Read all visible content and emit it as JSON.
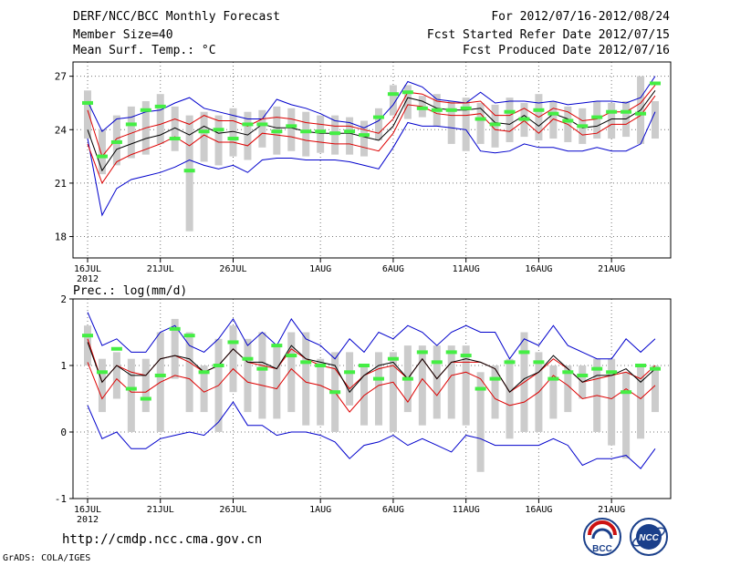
{
  "header": {
    "left": [
      "DERF/NCC/BCC Monthly Forecast",
      "Member Size=40",
      "Mean Surf. Temp.: °C"
    ],
    "right": [
      "For 2012/07/16-2012/08/24",
      "Fcst Started Refer Date 2012/07/15",
      "Fcst Produced Date 2012/07/16"
    ]
  },
  "footer": {
    "url": "http://cmdp.ncc.cma.gov.cn",
    "credit": "GrADS: COLA/IGES"
  },
  "logos": {
    "bcc": "BCC",
    "ncc": "NCC"
  },
  "colors": {
    "max_min": "#0000cc",
    "percentile": "#dd0000",
    "mean": "#000000",
    "observed": "#44ee44",
    "box": "#cccccc",
    "grid": "#777777"
  },
  "chart_data": [
    {
      "type": "line",
      "title": "Mean Surf. Temp.: °C",
      "x_tick_labels": [
        "16JUL",
        "21JUL",
        "26JUL",
        "1AUG",
        "6AUG",
        "11AUG",
        "16AUG",
        "21AUG"
      ],
      "x_tick_days": [
        1,
        6,
        11,
        17,
        22,
        27,
        32,
        37
      ],
      "year_label": "2012",
      "ylim": [
        16.8,
        27.8
      ],
      "y_ticks": [
        18,
        21,
        24,
        27
      ],
      "days": 40,
      "series": [
        {
          "name": "max",
          "color": "#0000cc",
          "values": [
            23.5,
            19.2,
            20.7,
            21.2,
            21.4,
            21.6,
            21.9,
            22.3,
            22.0,
            21.8,
            22.0,
            21.6,
            22.3,
            22.4,
            22.4,
            22.3,
            22.3,
            22.3,
            22.2,
            22.0,
            21.8,
            23.0,
            24.4,
            24.2,
            24.2,
            24.1,
            24.0,
            22.8,
            22.7,
            22.8,
            23.2,
            23.0,
            23.0,
            22.8,
            22.8,
            23.0,
            22.8,
            22.8,
            23.2,
            25.0
          ]
        },
        {
          "name": "min",
          "color": "#0000cc",
          "values": [
            25.6,
            23.9,
            24.6,
            24.7,
            25.0,
            25.1,
            25.5,
            25.8,
            25.2,
            25.0,
            24.8,
            24.6,
            24.6,
            25.7,
            25.4,
            25.2,
            24.9,
            24.5,
            24.4,
            24.1,
            24.5,
            25.4,
            26.7,
            26.4,
            25.7,
            25.6,
            25.5,
            26.1,
            25.5,
            25.6,
            25.6,
            25.5,
            25.6,
            25.4,
            25.5,
            25.6,
            25.6,
            25.5,
            25.8,
            27.0
          ]
        },
        {
          "name": "p90",
          "color": "#dd0000",
          "values": [
            25.1,
            22.5,
            23.5,
            23.8,
            24.1,
            24.3,
            24.6,
            24.3,
            24.8,
            24.5,
            24.5,
            24.2,
            24.6,
            24.7,
            24.6,
            24.4,
            24.3,
            24.2,
            24.2,
            24.0,
            23.8,
            24.6,
            26.1,
            26.0,
            25.6,
            25.5,
            25.5,
            25.6,
            24.8,
            24.8,
            25.2,
            24.7,
            25.2,
            25.0,
            24.5,
            24.6,
            25.0,
            25.0,
            25.5,
            26.5
          ]
        },
        {
          "name": "p10",
          "color": "#dd0000",
          "values": [
            23.2,
            21.0,
            22.2,
            22.6,
            22.9,
            23.2,
            23.6,
            23.1,
            23.7,
            23.3,
            23.3,
            23.1,
            23.8,
            23.7,
            23.6,
            23.4,
            23.3,
            23.2,
            23.2,
            23.0,
            22.8,
            23.8,
            25.4,
            25.3,
            24.9,
            24.8,
            24.8,
            24.9,
            24.0,
            23.9,
            24.5,
            23.8,
            24.6,
            24.3,
            23.7,
            23.8,
            24.3,
            24.3,
            24.8,
            25.9
          ]
        },
        {
          "name": "mean",
          "color": "#000000",
          "values": [
            24.0,
            21.7,
            22.9,
            23.2,
            23.5,
            23.7,
            24.1,
            23.7,
            24.2,
            23.8,
            23.9,
            23.7,
            24.3,
            24.1,
            24.1,
            23.9,
            23.8,
            23.8,
            23.8,
            23.6,
            23.4,
            24.2,
            25.8,
            25.6,
            25.2,
            25.1,
            25.1,
            25.2,
            24.4,
            24.3,
            24.8,
            24.2,
            24.9,
            24.6,
            24.1,
            24.2,
            24.6,
            24.6,
            25.1,
            26.2
          ]
        }
      ],
      "observed": [
        25.5,
        22.5,
        23.3,
        24.3,
        25.1,
        25.3,
        23.5,
        21.7,
        23.9,
        24.0,
        23.5,
        24.3,
        24.3,
        23.9,
        24.2,
        23.9,
        23.9,
        23.8,
        23.9,
        23.7,
        24.7,
        26.0,
        26.1,
        25.2,
        25.1,
        25.1,
        25.2,
        24.6,
        24.3,
        25.0,
        24.6,
        25.1,
        24.9,
        24.5,
        24.2,
        24.7,
        25.0,
        25.0,
        24.9,
        26.6
      ],
      "boxes": [
        [
          23.5,
          26.2
        ],
        [
          21.5,
          24.0
        ],
        [
          22.0,
          24.8
        ],
        [
          22.4,
          25.3
        ],
        [
          22.6,
          25.6
        ],
        [
          23.2,
          26.0
        ],
        [
          22.8,
          25.3
        ],
        [
          18.3,
          24.8
        ],
        [
          22.2,
          25.0
        ],
        [
          22.0,
          24.8
        ],
        [
          22.5,
          25.2
        ],
        [
          22.3,
          25.0
        ],
        [
          23.0,
          25.1
        ],
        [
          22.6,
          25.3
        ],
        [
          22.8,
          25.2
        ],
        [
          22.5,
          25.0
        ],
        [
          22.7,
          24.8
        ],
        [
          22.6,
          24.8
        ],
        [
          22.6,
          24.7
        ],
        [
          22.5,
          24.5
        ],
        [
          23.4,
          25.2
        ],
        [
          24.8,
          26.5
        ],
        [
          24.6,
          26.5
        ],
        [
          24.7,
          25.9
        ],
        [
          24.2,
          26.0
        ],
        [
          23.2,
          25.6
        ],
        [
          22.8,
          25.8
        ],
        [
          23.2,
          25.5
        ],
        [
          23.0,
          25.4
        ],
        [
          23.3,
          25.8
        ],
        [
          23.6,
          25.5
        ],
        [
          23.4,
          26.0
        ],
        [
          23.5,
          25.6
        ],
        [
          23.3,
          25.3
        ],
        [
          23.2,
          25.2
        ],
        [
          23.5,
          25.6
        ],
        [
          23.5,
          25.5
        ],
        [
          23.6,
          25.6
        ],
        [
          23.2,
          27.0
        ],
        [
          23.5,
          25.6
        ]
      ]
    },
    {
      "type": "line",
      "title": "Prec.: log(mm/d)",
      "x_tick_labels": [
        "16JUL",
        "21JUL",
        "26JUL",
        "1AUG",
        "6AUG",
        "11AUG",
        "16AUG",
        "21AUG"
      ],
      "x_tick_days": [
        1,
        6,
        11,
        17,
        22,
        27,
        32,
        37
      ],
      "year_label": "2012",
      "ylim": [
        -1,
        2
      ],
      "y_ticks": [
        -1,
        0,
        1,
        2
      ],
      "days": 40,
      "series": [
        {
          "name": "max",
          "color": "#0000cc",
          "values": [
            1.8,
            1.3,
            1.4,
            1.2,
            1.2,
            1.5,
            1.6,
            1.3,
            1.2,
            1.4,
            1.7,
            1.3,
            1.5,
            1.3,
            1.7,
            1.4,
            1.3,
            1.1,
            1.4,
            1.2,
            1.5,
            1.4,
            1.6,
            1.5,
            1.3,
            1.5,
            1.6,
            1.5,
            1.5,
            1.1,
            1.4,
            1.3,
            1.6,
            1.3,
            1.2,
            1.1,
            1.1,
            1.4,
            1.2,
            1.4
          ]
        },
        {
          "name": "min",
          "color": "#0000cc",
          "values": [
            0.4,
            -0.1,
            0.0,
            -0.25,
            -0.25,
            -0.1,
            -0.05,
            0.0,
            -0.05,
            0.15,
            0.45,
            0.1,
            0.1,
            -0.05,
            0.0,
            0.0,
            -0.05,
            -0.15,
            -0.4,
            -0.2,
            -0.15,
            -0.05,
            -0.2,
            -0.1,
            -0.2,
            -0.3,
            -0.05,
            -0.1,
            -0.2,
            -0.2,
            -0.2,
            -0.2,
            -0.1,
            -0.2,
            -0.5,
            -0.4,
            -0.4,
            -0.35,
            -0.55,
            -0.25
          ]
        },
        {
          "name": "p90",
          "color": "#dd0000",
          "values": [
            1.4,
            0.75,
            1.0,
            0.9,
            0.85,
            1.1,
            1.15,
            1.05,
            0.9,
            1.0,
            1.25,
            1.05,
            1.0,
            0.95,
            1.25,
            1.1,
            1.0,
            0.95,
            0.65,
            0.85,
            0.95,
            1.0,
            0.8,
            1.1,
            0.8,
            1.05,
            1.05,
            1.05,
            0.95,
            0.6,
            0.75,
            0.9,
            1.1,
            0.95,
            0.75,
            0.8,
            0.85,
            0.9,
            0.8,
            1.0
          ]
        },
        {
          "name": "p10",
          "color": "#dd0000",
          "values": [
            1.05,
            0.5,
            0.8,
            0.6,
            0.6,
            0.75,
            0.85,
            0.8,
            0.6,
            0.7,
            0.95,
            0.75,
            0.7,
            0.65,
            0.95,
            0.75,
            0.7,
            0.6,
            0.3,
            0.55,
            0.7,
            0.75,
            0.45,
            0.8,
            0.55,
            0.85,
            0.9,
            0.8,
            0.5,
            0.4,
            0.45,
            0.6,
            0.85,
            0.7,
            0.5,
            0.55,
            0.5,
            0.65,
            0.5,
            0.7
          ]
        },
        {
          "name": "mean",
          "color": "#000000",
          "values": [
            1.35,
            0.75,
            1.0,
            0.85,
            0.85,
            1.1,
            1.15,
            1.1,
            0.9,
            1.0,
            1.25,
            1.05,
            1.05,
            0.95,
            1.3,
            1.1,
            1.05,
            1.0,
            0.6,
            0.85,
            1.0,
            1.05,
            0.8,
            1.1,
            0.8,
            1.05,
            1.1,
            1.05,
            0.95,
            0.6,
            0.8,
            0.9,
            1.15,
            0.95,
            0.75,
            0.85,
            0.85,
            0.95,
            0.75,
            0.95
          ]
        }
      ],
      "observed": [
        1.45,
        0.9,
        1.25,
        0.65,
        0.5,
        0.85,
        1.55,
        1.45,
        0.9,
        1.0,
        1.35,
        1.1,
        0.95,
        1.3,
        1.15,
        1.05,
        1.0,
        0.6,
        0.9,
        1.0,
        0.8,
        1.1,
        0.8,
        1.2,
        1.05,
        1.2,
        1.15,
        0.65,
        0.8,
        1.05,
        1.2,
        1.05,
        0.8,
        0.9,
        0.85,
        0.95,
        0.9,
        0.6,
        1.0,
        0.95
      ],
      "boxes": [
        [
          1.0,
          1.6
        ],
        [
          0.3,
          1.1
        ],
        [
          0.5,
          1.2
        ],
        [
          0.0,
          1.1
        ],
        [
          0.3,
          1.1
        ],
        [
          0.0,
          1.5
        ],
        [
          0.8,
          1.7
        ],
        [
          0.3,
          1.5
        ],
        [
          0.3,
          1.0
        ],
        [
          0.0,
          1.4
        ],
        [
          0.6,
          1.6
        ],
        [
          0.3,
          1.4
        ],
        [
          0.2,
          1.5
        ],
        [
          0.2,
          1.3
        ],
        [
          0.3,
          1.5
        ],
        [
          0.1,
          1.5
        ],
        [
          0.1,
          1.1
        ],
        [
          0.0,
          1.2
        ],
        [
          0.4,
          1.2
        ],
        [
          0.1,
          1.0
        ],
        [
          0.1,
          1.2
        ],
        [
          0.0,
          1.2
        ],
        [
          0.3,
          1.3
        ],
        [
          0.1,
          1.3
        ],
        [
          0.2,
          1.3
        ],
        [
          0.2,
          1.3
        ],
        [
          0.1,
          1.3
        ],
        [
          -0.6,
          0.9
        ],
        [
          0.2,
          1.0
        ],
        [
          -0.1,
          1.1
        ],
        [
          0.0,
          1.5
        ],
        [
          0.0,
          1.2
        ],
        [
          0.2,
          1.0
        ],
        [
          0.3,
          1.0
        ],
        [
          0.5,
          1.0
        ],
        [
          0.0,
          1.1
        ],
        [
          -0.2,
          1.1
        ],
        [
          -0.4,
          0.9
        ],
        [
          -0.1,
          1.0
        ],
        [
          0.3,
          1.0
        ]
      ]
    }
  ]
}
